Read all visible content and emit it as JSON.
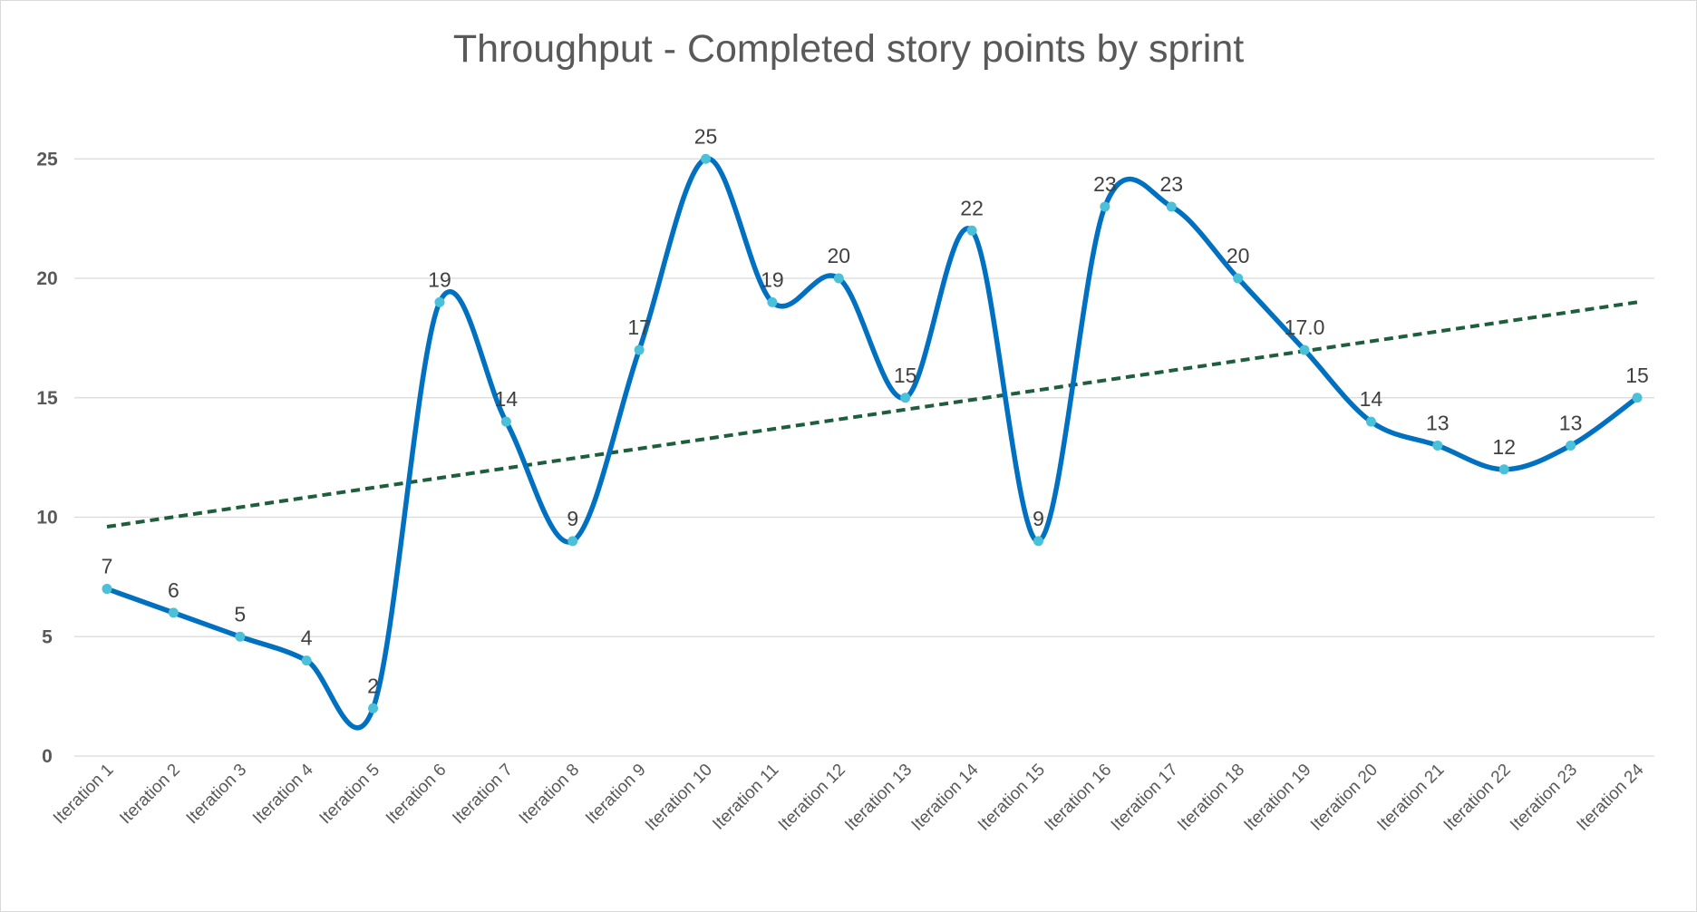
{
  "chart_data": {
    "type": "line",
    "title": "Throughput - Completed story points by sprint",
    "xlabel": "",
    "ylabel": "",
    "categories": [
      "Iteration 1",
      "Iteration 2",
      "Iteration 3",
      "Iteration 4",
      "Iteration 5",
      "Iteration 6",
      "Iteration 7",
      "Iteration 8",
      "Iteration 9",
      "Iteration 10",
      "Iteration 11",
      "Iteration 12",
      "Iteration 13",
      "Iteration 14",
      "Iteration 15",
      "Iteration 16",
      "Iteration 17",
      "Iteration 18",
      "Iteration 19",
      "Iteration 20",
      "Iteration 21",
      "Iteration 22",
      "Iteration 23",
      "Iteration 24"
    ],
    "series": [
      {
        "values": [
          7,
          6,
          5,
          4,
          2,
          19,
          14,
          9,
          17,
          25,
          19,
          20,
          15,
          22,
          9,
          23,
          23,
          20,
          17,
          14,
          13,
          12,
          13,
          15
        ],
        "data_labels": [
          "7",
          "6",
          "5",
          "4",
          "2",
          "19",
          "14",
          "9",
          "17",
          "25",
          "19",
          "20",
          "15",
          "22",
          "9",
          "23",
          "23",
          "20",
          "17.0",
          "14",
          "13",
          "12",
          "13",
          "15"
        ],
        "line_color": "#0070c0",
        "marker_color": "#4bc0d9",
        "smoothed": true
      }
    ],
    "trendline": {
      "type": "linear",
      "color": "#1e5e3c",
      "style": "dashed",
      "start": 9.6,
      "end": 19.0
    },
    "yticks": [
      0,
      5,
      10,
      15,
      20,
      25
    ],
    "ylim": [
      0,
      27
    ],
    "grid": true,
    "legend": "none"
  }
}
